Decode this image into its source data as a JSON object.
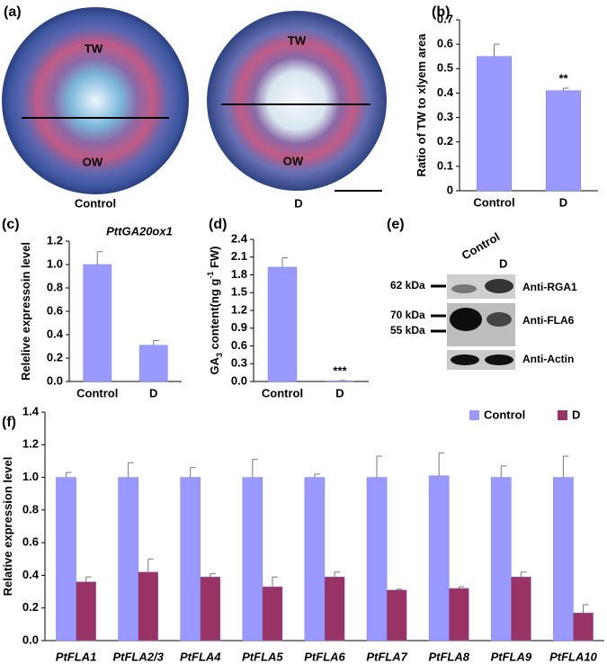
{
  "image_panel": {
    "label": "(a)",
    "regions": [
      "TW",
      "OW",
      "TW",
      "OW"
    ],
    "samples": [
      "Control",
      "D"
    ]
  },
  "blot": {
    "label": "(e)",
    "lanes": [
      "Control",
      "D"
    ],
    "markers": [
      "62 kDa",
      "70 kDa",
      "55 kDa"
    ],
    "antibodies": [
      "Anti-RGA1",
      "Anti-FLA6",
      "Anti-Actin"
    ]
  },
  "chart_data": [
    {
      "type": "bar",
      "panel_label": "(b)",
      "ylabel": [
        {
          "text": "Ratio of TW to xlyem area"
        }
      ],
      "categories": [
        "Control",
        "D"
      ],
      "values": [
        0.55,
        0.41
      ],
      "errors": [
        0.05,
        0.01
      ],
      "color": "#9999ff",
      "ylim": [
        0,
        0.7
      ],
      "yticks": [
        0,
        0.1,
        0.2,
        0.3,
        0.4,
        0.5,
        0.6,
        0.7
      ],
      "annotations": [
        "**"
      ]
    },
    {
      "type": "bar",
      "panel_label": "(c)",
      "title": "PttGA20ox1",
      "ylabel": [
        {
          "text": "Relelive expressoin level"
        }
      ],
      "categories": [
        "Control",
        "D"
      ],
      "values": [
        1.0,
        0.31
      ],
      "errors": [
        0.11,
        0.04
      ],
      "color": "#9999ff",
      "ylim": [
        0,
        1.2
      ],
      "yticks": [
        {
          "value": 0,
          "label": "0.0"
        },
        0.2,
        0.4,
        0.6,
        0.8,
        {
          "value": 1,
          "label": "1.0"
        },
        1.2
      ]
    },
    {
      "type": "bar",
      "panel_label": "(d)",
      "ylabel": [
        {
          "text": "GA"
        },
        {
          "text": "3",
          "shift": "sub"
        },
        {
          "text": " content(ng g"
        },
        {
          "text": "-1",
          "shift": "super"
        },
        {
          "text": " FW)"
        }
      ],
      "categories": [
        "Control",
        "D"
      ],
      "values": [
        1.93,
        0.01
      ],
      "errors": [
        0.16,
        0.005
      ],
      "color": "#9999ff",
      "ylim": [
        0,
        2.4
      ],
      "yticks": [
        {
          "value": 0,
          "label": "0.0"
        },
        0.3,
        0.6,
        0.9,
        1.2,
        1.5,
        1.8,
        2.1,
        2.4
      ],
      "annotations": [
        "***"
      ]
    },
    {
      "type": "grouped_bar",
      "panel_label": "(f)",
      "ylabel": [
        {
          "text": "Relative expression level"
        }
      ],
      "categories": [
        "PtFLA1",
        "PtFLA2/3",
        "PtFLA4",
        "PtFLA5",
        "PtFLA6",
        "PtFLA7",
        "PtFLA8",
        "PtFLA9",
        "PtFLA10"
      ],
      "series": [
        {
          "name": "Control",
          "color": "#9999ff",
          "values": [
            1.0,
            1.0,
            1.0,
            1.0,
            1.0,
            1.0,
            1.01,
            1.0,
            1.0
          ],
          "errors": [
            0.03,
            0.09,
            0.06,
            0.11,
            0.02,
            0.13,
            0.14,
            0.07,
            0.13
          ]
        },
        {
          "name": "D",
          "color": "#993366",
          "values": [
            0.36,
            0.42,
            0.39,
            0.33,
            0.39,
            0.31,
            0.32,
            0.39,
            0.17
          ],
          "errors": [
            0.03,
            0.08,
            0.02,
            0.06,
            0.03,
            0.005,
            0.01,
            0.03,
            0.05
          ]
        }
      ],
      "ylim": [
        0,
        1.4
      ],
      "yticks": [
        {
          "value": 0,
          "label": "0.0"
        },
        0.2,
        0.4,
        0.6,
        0.8,
        {
          "value": 1,
          "label": "1.0"
        },
        1.2,
        1.4
      ],
      "legend": "top-right"
    }
  ]
}
